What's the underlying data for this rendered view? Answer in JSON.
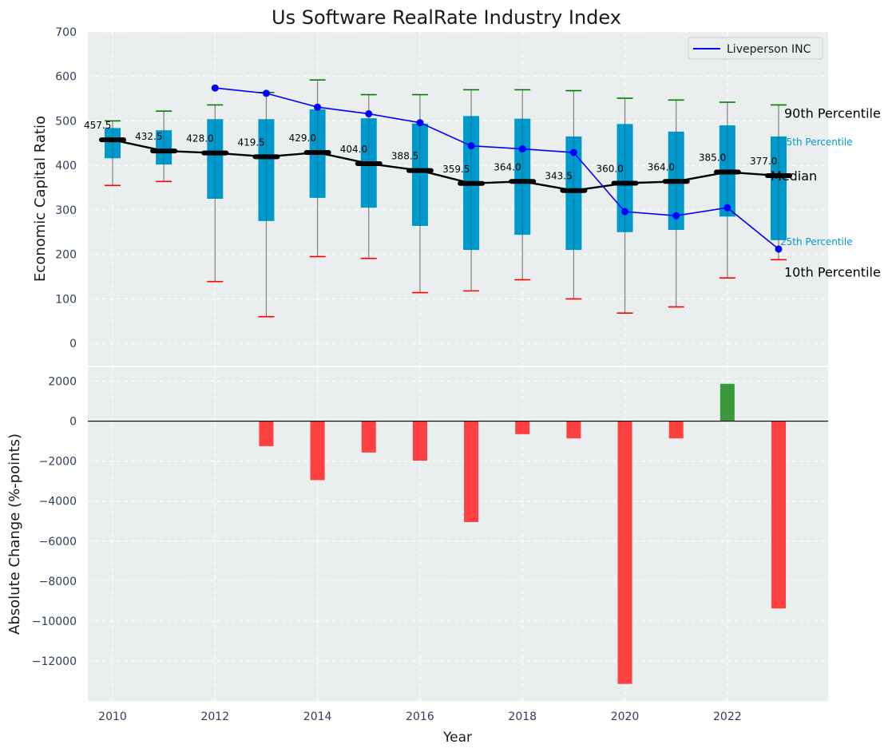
{
  "chart_data": [
    {
      "type": "box",
      "title": "Us Software RealRate Industry Index",
      "ylabel": "Economic Capital Ratio",
      "ylim": [
        -50,
        700
      ],
      "yticks": [
        0,
        100,
        200,
        300,
        400,
        500,
        600,
        700
      ],
      "grid": true,
      "legend_position": "upper right",
      "years": [
        2010,
        2011,
        2012,
        2013,
        2014,
        2015,
        2016,
        2017,
        2018,
        2019,
        2020,
        2021,
        2022,
        2023
      ],
      "p10": [
        355,
        364,
        139,
        60,
        195,
        191,
        114,
        118,
        143,
        100,
        68,
        82,
        147,
        188
      ],
      "p25": [
        416,
        402,
        325,
        275,
        327,
        305,
        264,
        210,
        244,
        210,
        250,
        255,
        285,
        232
      ],
      "median": [
        457.5,
        432.5,
        428.0,
        419.5,
        429.0,
        404.0,
        388.5,
        359.5,
        364.0,
        343.5,
        360.0,
        364.0,
        385.0,
        377.0
      ],
      "median_labels": [
        "457.5",
        "432.5",
        "428.0",
        "419.5",
        "429.0",
        "404.0",
        "388.5",
        "359.5",
        "364.0",
        "343.5",
        "360.0",
        "364.0",
        "385.0",
        "377.0"
      ],
      "p75": [
        484,
        479,
        504,
        504,
        526,
        506,
        494,
        511,
        505,
        465,
        493,
        476,
        490,
        465
      ],
      "p90": [
        500,
        522,
        536,
        564,
        592,
        559,
        559,
        570,
        570,
        568,
        551,
        547,
        542,
        536
      ],
      "company_series": {
        "name": "Liveperson INC",
        "x": [
          2012,
          2013,
          2014,
          2015,
          2016,
          2017,
          2018,
          2019,
          2020,
          2021,
          2022,
          2023
        ],
        "values": [
          574,
          562,
          531,
          516,
          496,
          444,
          437,
          429,
          296,
          287,
          305,
          212
        ]
      },
      "annotations": {
        "p90": "90th Percentile",
        "p75": "75th Percentile",
        "median": "Median",
        "p25": "25th Percentile",
        "p10": "10th Percentile"
      },
      "colors": {
        "box": "#0099cc",
        "median": "#000000",
        "company": "#0000ff",
        "p90_cap": "#008000",
        "p10_cap": "#ff0000",
        "whisker": "#808080",
        "background": "#ebeeef"
      }
    },
    {
      "type": "bar",
      "xlabel": "Year",
      "ylabel": "Absolute Change (%-points)",
      "ylim": [
        -14000,
        2700
      ],
      "yticks": [
        2000,
        0,
        -2000,
        -4000,
        -6000,
        -8000,
        -10000,
        -12000
      ],
      "ytick_labels": [
        "2000",
        "0",
        "−2000",
        "−4000",
        "−6000",
        "−8000",
        "−10000",
        "−12000"
      ],
      "x": [
        2013,
        2014,
        2015,
        2016,
        2017,
        2018,
        2019,
        2020,
        2021,
        2022,
        2023
      ],
      "values": [
        -1250,
        -2950,
        -1570,
        -1980,
        -5050,
        -650,
        -860,
        -13150,
        -860,
        1870,
        -9370
      ],
      "xticks": [
        2010,
        2012,
        2014,
        2016,
        2018,
        2020,
        2022
      ],
      "colors": {
        "positive": "#3a9a3a",
        "negative": "#ff4040"
      }
    }
  ]
}
